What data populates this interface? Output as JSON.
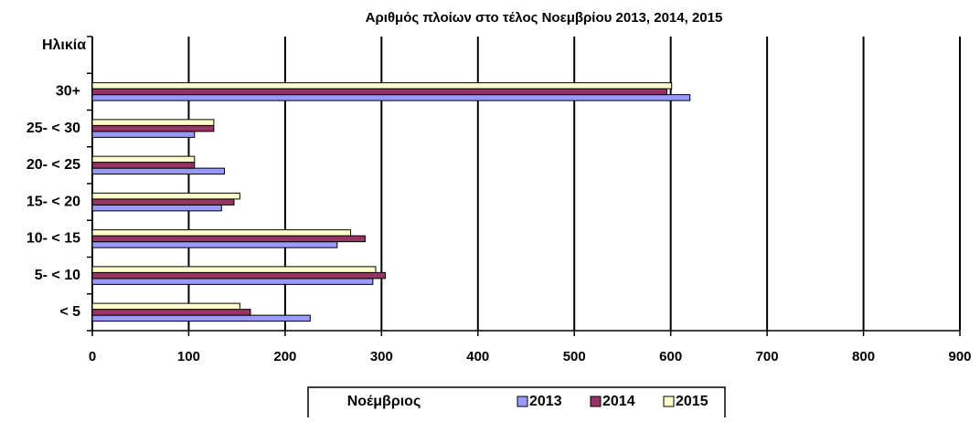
{
  "chart_data": {
    "type": "barh",
    "title": "Αριθμός πλοίων στο τέλος Νοεμβρίου 2013, 2014, 2015",
    "y_label": "Ηλικία",
    "legend_title": "Νοέμβριος",
    "categories": [
      "<  5",
      "5- < 10",
      "10- < 15",
      "15- < 20",
      "20- < 25",
      "25- < 30",
      "30+",
      null
    ],
    "series": [
      {
        "name": "2013",
        "color": "#9999ff",
        "values": [
          226,
          291,
          254,
          134,
          137,
          106,
          620,
          null
        ]
      },
      {
        "name": "2014",
        "color": "#993366",
        "values": [
          164,
          304,
          283,
          147,
          106,
          126,
          596,
          null
        ]
      },
      {
        "name": "2015",
        "color": "#ffffcc",
        "values": [
          153,
          294,
          268,
          153,
          106,
          126,
          601,
          null
        ]
      }
    ],
    "xlim": [
      0,
      900
    ],
    "xticks": [
      0,
      100,
      200,
      300,
      400,
      500,
      600,
      700,
      800,
      900
    ],
    "grid": true,
    "legend": "bottom"
  }
}
